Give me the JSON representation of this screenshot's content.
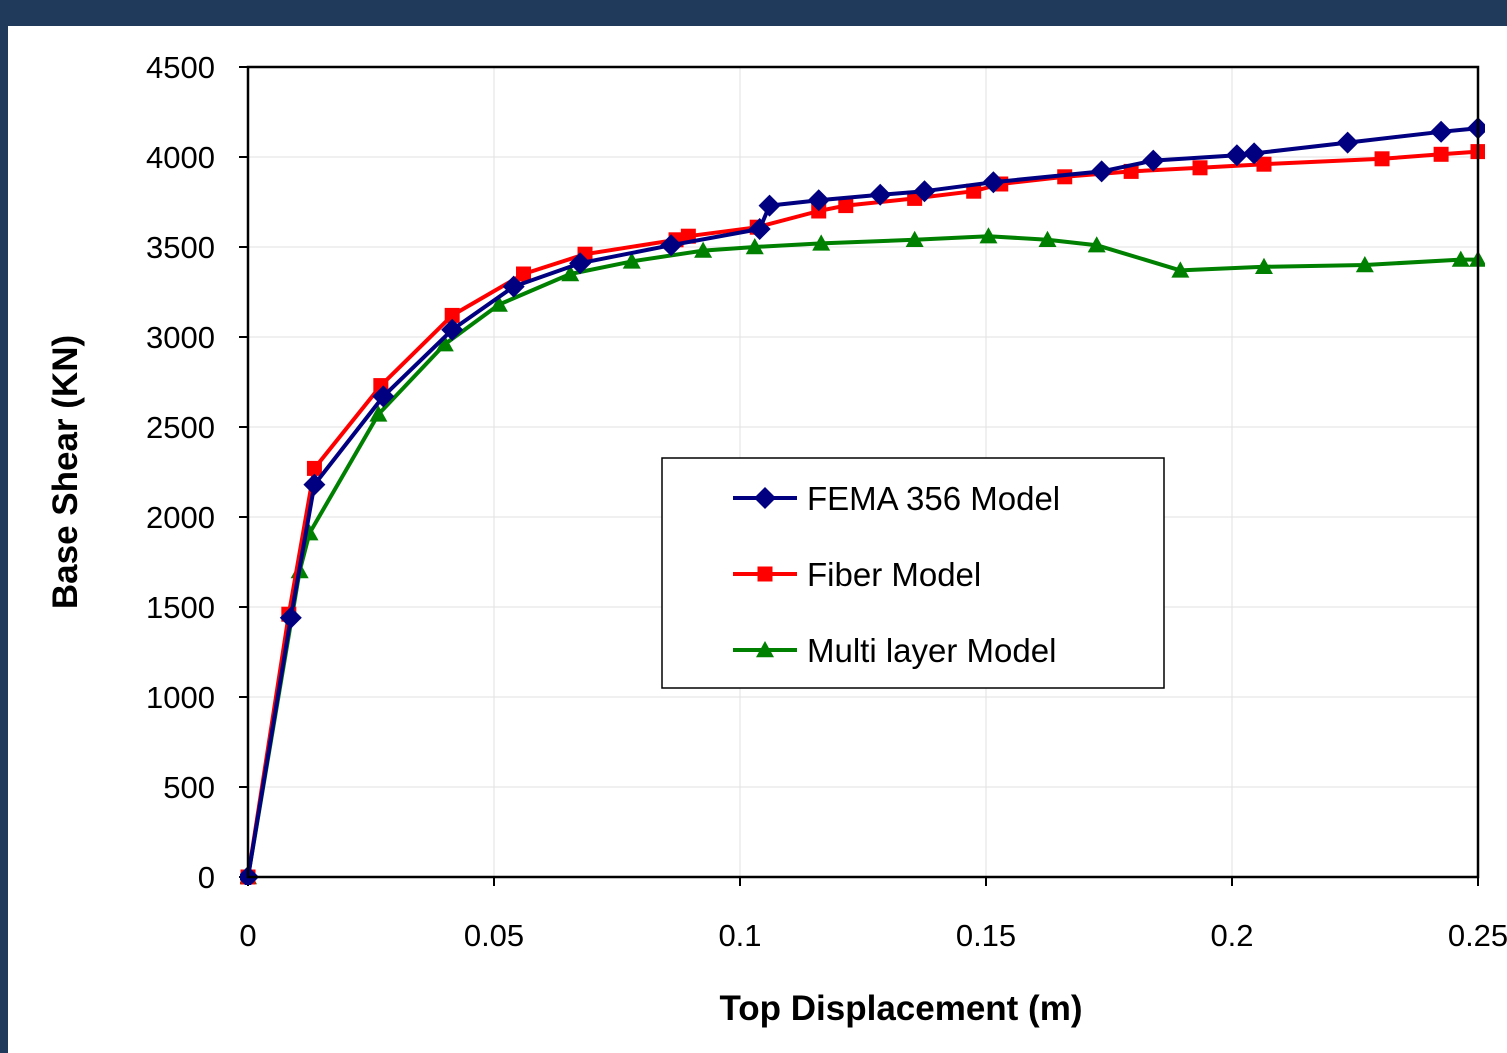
{
  "chart_data": {
    "type": "line",
    "xlabel": "Top Displacement (m)",
    "ylabel": "Base Shear (KN)",
    "xlim": [
      0,
      0.25
    ],
    "ylim": [
      0,
      4500
    ],
    "x_ticks": [
      "0",
      "0.05",
      "0.1",
      "0.15",
      "0.2",
      "0.25"
    ],
    "x_tick_values": [
      0,
      0.05,
      0.1,
      0.15,
      0.2,
      0.25
    ],
    "y_ticks": [
      "0",
      "500",
      "1000",
      "1500",
      "2000",
      "2500",
      "3000",
      "3500",
      "4000",
      "4500"
    ],
    "y_tick_values": [
      0,
      500,
      1000,
      1500,
      2000,
      2500,
      3000,
      3500,
      4000,
      4500
    ],
    "grid": true,
    "legend_position": "center-right",
    "series": [
      {
        "name": "FEMA 356 Model",
        "color": "#000080",
        "marker": "diamond",
        "points": [
          [
            0,
            0
          ],
          [
            0.0087,
            1440
          ],
          [
            0.0135,
            2180
          ],
          [
            0.0275,
            2670
          ],
          [
            0.0415,
            3040
          ],
          [
            0.054,
            3280
          ],
          [
            0.0675,
            3410
          ],
          [
            0.086,
            3510
          ],
          [
            0.104,
            3600
          ],
          [
            0.106,
            3730
          ],
          [
            0.116,
            3760
          ],
          [
            0.1285,
            3790
          ],
          [
            0.1375,
            3810
          ],
          [
            0.1515,
            3860
          ],
          [
            0.1735,
            3920
          ],
          [
            0.184,
            3980
          ],
          [
            0.201,
            4010
          ],
          [
            0.2045,
            4020
          ],
          [
            0.2235,
            4080
          ],
          [
            0.2425,
            4140
          ],
          [
            0.25,
            4160
          ]
        ]
      },
      {
        "name": "Fiber Model",
        "color": "#ff0000",
        "marker": "square",
        "points": [
          [
            0,
            0
          ],
          [
            0.0083,
            1460
          ],
          [
            0.0135,
            2270
          ],
          [
            0.027,
            2730
          ],
          [
            0.0415,
            3120
          ],
          [
            0.056,
            3350
          ],
          [
            0.0685,
            3460
          ],
          [
            0.087,
            3540
          ],
          [
            0.0895,
            3560
          ],
          [
            0.1035,
            3610
          ],
          [
            0.116,
            3700
          ],
          [
            0.1215,
            3730
          ],
          [
            0.1355,
            3770
          ],
          [
            0.1475,
            3810
          ],
          [
            0.153,
            3850
          ],
          [
            0.166,
            3890
          ],
          [
            0.1795,
            3920
          ],
          [
            0.1935,
            3940
          ],
          [
            0.2065,
            3960
          ],
          [
            0.2305,
            3990
          ],
          [
            0.2425,
            4015
          ],
          [
            0.25,
            4030
          ]
        ]
      },
      {
        "name": "Multi layer Model",
        "color": "#008000",
        "marker": "triangle",
        "points": [
          [
            0,
            0
          ],
          [
            0.0105,
            1700
          ],
          [
            0.0125,
            1910
          ],
          [
            0.0265,
            2570
          ],
          [
            0.04,
            2960
          ],
          [
            0.051,
            3180
          ],
          [
            0.0655,
            3350
          ],
          [
            0.078,
            3420
          ],
          [
            0.0925,
            3480
          ],
          [
            0.103,
            3500
          ],
          [
            0.1165,
            3520
          ],
          [
            0.1355,
            3540
          ],
          [
            0.1505,
            3560
          ],
          [
            0.1625,
            3540
          ],
          [
            0.1725,
            3510
          ],
          [
            0.1895,
            3370
          ],
          [
            0.2065,
            3390
          ],
          [
            0.227,
            3400
          ],
          [
            0.2465,
            3430
          ],
          [
            0.25,
            3430
          ]
        ]
      }
    ]
  }
}
